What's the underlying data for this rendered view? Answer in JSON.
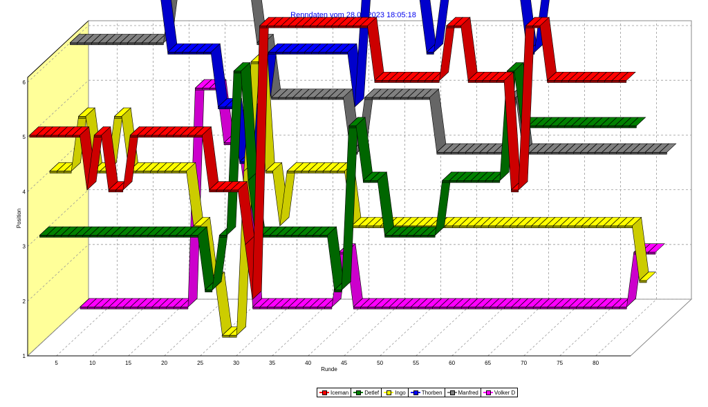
{
  "chart_data": {
    "type": "line",
    "title": "Renndaten vom 28.09.2023 18:05:18",
    "xlabel": "Runde",
    "ylabel": "Position",
    "xlim": [
      1,
      84
    ],
    "ylim": [
      1,
      6
    ],
    "x_ticks": [
      5,
      10,
      15,
      20,
      25,
      30,
      35,
      40,
      45,
      50,
      55,
      60,
      65,
      70,
      75,
      80
    ],
    "y_ticks": [
      1,
      2,
      3,
      4,
      5,
      6
    ],
    "grid": true,
    "style": "3d-ribbon",
    "legend_position": "bottom-center",
    "series": [
      {
        "name": "Iceman",
        "color": "#ff0000",
        "positions": [
          [
            1,
            5
          ],
          [
            7,
            5
          ],
          [
            9,
            4
          ],
          [
            10,
            5
          ],
          [
            11,
            5
          ],
          [
            12,
            4
          ],
          [
            14,
            4
          ],
          [
            15,
            5
          ],
          [
            25,
            5
          ],
          [
            26,
            4
          ],
          [
            30,
            4
          ],
          [
            31,
            3
          ],
          [
            32,
            2
          ],
          [
            33,
            7
          ],
          [
            48,
            7
          ],
          [
            49,
            6
          ],
          [
            58,
            6
          ],
          [
            59,
            7
          ],
          [
            61,
            7
          ],
          [
            62,
            6
          ],
          [
            67,
            6
          ],
          [
            68,
            4
          ],
          [
            69,
            4
          ],
          [
            70,
            7
          ],
          [
            72,
            7
          ],
          [
            73,
            6
          ],
          [
            84,
            6
          ]
        ]
      },
      {
        "name": "Detlef",
        "color": "#008000",
        "positions": [
          [
            1,
            3
          ],
          [
            23,
            3
          ],
          [
            24,
            2
          ],
          [
            25,
            2
          ],
          [
            26,
            3
          ],
          [
            27,
            3
          ],
          [
            28,
            6
          ],
          [
            29,
            6
          ],
          [
            30,
            4
          ],
          [
            31,
            3
          ],
          [
            41,
            3
          ],
          [
            42,
            2
          ],
          [
            43,
            2
          ],
          [
            44,
            5
          ],
          [
            45,
            5
          ],
          [
            46,
            4
          ],
          [
            48,
            4
          ],
          [
            49,
            3
          ],
          [
            56,
            3
          ],
          [
            57,
            4
          ],
          [
            65,
            4
          ],
          [
            66,
            6
          ],
          [
            67,
            6
          ],
          [
            68,
            5
          ],
          [
            84,
            5
          ]
        ]
      },
      {
        "name": "Ingo",
        "color": "#ffff00",
        "positions": [
          [
            1,
            4
          ],
          [
            3,
            4
          ],
          [
            5,
            5
          ],
          [
            6,
            5
          ],
          [
            7,
            4
          ],
          [
            8,
            4
          ],
          [
            10,
            5
          ],
          [
            11,
            5
          ],
          [
            12,
            4
          ],
          [
            20,
            4
          ],
          [
            21,
            3
          ],
          [
            22,
            3
          ],
          [
            23,
            2
          ],
          [
            24,
            2
          ],
          [
            25,
            1
          ],
          [
            26,
            1
          ],
          [
            27,
            1
          ],
          [
            28,
            4
          ],
          [
            29,
            6
          ],
          [
            30,
            6
          ],
          [
            31,
            4
          ],
          [
            32,
            4
          ],
          [
            33,
            3
          ],
          [
            34,
            4
          ],
          [
            42,
            4
          ],
          [
            43,
            3
          ],
          [
            44,
            3
          ],
          [
            82,
            3
          ],
          [
            83,
            2
          ],
          [
            84,
            2
          ]
        ]
      },
      {
        "name": "Thorben",
        "color": "#0000ff",
        "positions": [
          [
            1,
            7
          ],
          [
            15,
            7
          ],
          [
            16,
            6
          ],
          [
            22,
            6
          ],
          [
            23,
            5
          ],
          [
            25,
            5
          ],
          [
            26,
            4
          ],
          [
            27,
            4
          ],
          [
            28,
            5
          ],
          [
            29,
            5
          ],
          [
            30,
            6
          ],
          [
            41,
            6
          ],
          [
            42,
            5
          ],
          [
            43,
            7
          ],
          [
            51,
            7
          ],
          [
            52,
            6
          ],
          [
            53,
            6
          ],
          [
            54,
            7
          ],
          [
            65,
            7
          ],
          [
            66,
            6
          ],
          [
            67,
            6
          ],
          [
            68,
            7
          ],
          [
            84,
            7
          ]
        ]
      },
      {
        "name": "Manfred",
        "color": "#808080",
        "positions": [
          [
            1,
            6
          ],
          [
            14,
            6
          ],
          [
            15,
            7
          ],
          [
            26,
            7
          ],
          [
            27,
            6
          ],
          [
            28,
            6
          ],
          [
            29,
            5
          ],
          [
            39,
            5
          ],
          [
            40,
            4
          ],
          [
            41,
            4
          ],
          [
            42,
            5
          ],
          [
            51,
            5
          ],
          [
            52,
            4
          ],
          [
            55,
            4
          ],
          [
            56,
            4
          ],
          [
            61,
            4
          ],
          [
            62,
            5
          ],
          [
            63,
            5
          ],
          [
            64,
            4
          ],
          [
            84,
            4
          ]
        ]
      },
      {
        "name": "Volker D",
        "color": "#ff00ff",
        "positions": [
          [
            1,
            1
          ],
          [
            16,
            1
          ],
          [
            17,
            5
          ],
          [
            20,
            5
          ],
          [
            21,
            4
          ],
          [
            23,
            4
          ],
          [
            24,
            3
          ],
          [
            25,
            1
          ],
          [
            36,
            1
          ],
          [
            37,
            2
          ],
          [
            38,
            2
          ],
          [
            39,
            1
          ],
          [
            77,
            1
          ],
          [
            78,
            2
          ],
          [
            81,
            2
          ]
        ]
      }
    ]
  }
}
